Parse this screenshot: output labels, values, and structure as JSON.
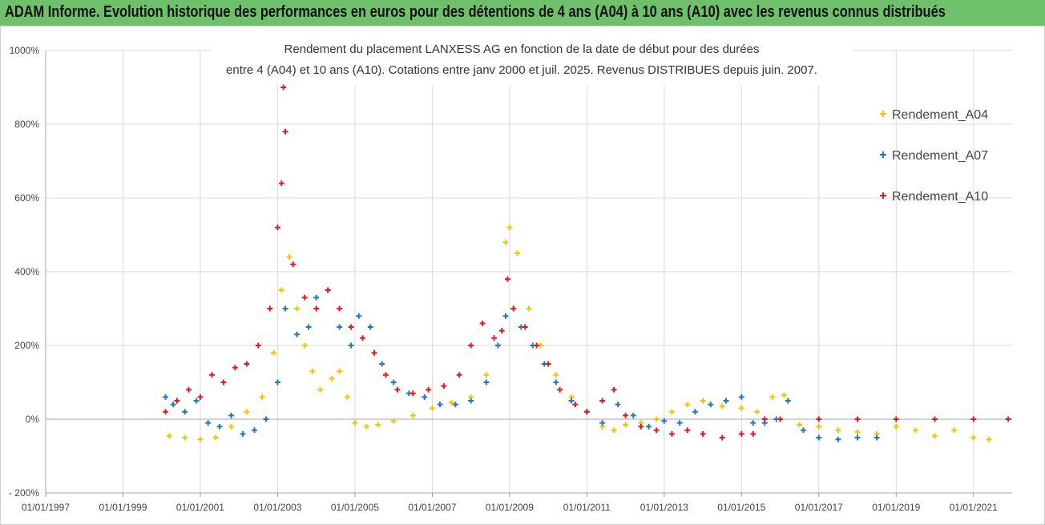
{
  "header": {
    "title": "ADAM Informe. Evolution historique des performances en euros pour des détentions de 4 ans (A04) à 10 ans (A10) avec les revenus connus distribués"
  },
  "chart_data": {
    "type": "scatter",
    "title_line1": "Rendement du placement LANXESS AG en fonction de la date de début pour des durées",
    "title_line2": "entre 4 (A04) et 10 ans (A10).  Cotations entre janv 2000 et juil. 2025. Revenus DISTRIBUES depuis juin. 2007.",
    "x_ticks": [
      "01/01/1997",
      "01/01/1999",
      "01/01/2001",
      "01/01/2003",
      "01/01/2005",
      "01/01/2007",
      "01/01/2009",
      "01/01/2011",
      "01/01/2013",
      "01/01/2015",
      "01/01/2017",
      "01/01/2019",
      "01/01/2021"
    ],
    "y_ticks": [
      "1000%",
      "800%",
      "600%",
      "400%",
      "200%",
      "0%",
      "- 200%"
    ],
    "xlim": [
      1997.0,
      2022.0
    ],
    "ylim": [
      -200,
      1000
    ],
    "grid": true,
    "legend_position": "right",
    "series": [
      {
        "name": "Rendement_A04",
        "color": "#f5c300",
        "x": [
          2000.2,
          2000.6,
          2001.0,
          2001.4,
          2001.8,
          2002.2,
          2002.6,
          2002.9,
          2003.1,
          2003.3,
          2003.5,
          2003.7,
          2003.9,
          2004.1,
          2004.4,
          2004.6,
          2004.8,
          2005.0,
          2005.3,
          2005.6,
          2006.0,
          2006.5,
          2007.0,
          2007.5,
          2008.0,
          2008.4,
          2008.7,
          2008.9,
          2009.0,
          2009.2,
          2009.5,
          2009.8,
          2010.2,
          2010.6,
          2011.0,
          2011.4,
          2011.7,
          2012.0,
          2012.4,
          2012.8,
          2013.2,
          2013.6,
          2014.0,
          2014.5,
          2015.0,
          2015.4,
          2015.8,
          2016.1,
          2016.5,
          2017.0,
          2017.5,
          2018.0,
          2018.5,
          2019.0,
          2019.5,
          2020.0,
          2020.5,
          2021.0,
          2021.4
        ],
        "y": [
          -45,
          -50,
          -55,
          -50,
          -20,
          20,
          60,
          180,
          350,
          440,
          300,
          200,
          130,
          80,
          110,
          130,
          60,
          -10,
          -20,
          -15,
          -5,
          10,
          30,
          45,
          60,
          120,
          200,
          480,
          520,
          450,
          300,
          200,
          120,
          60,
          20,
          -20,
          -30,
          -15,
          -10,
          0,
          20,
          40,
          50,
          35,
          30,
          20,
          60,
          65,
          -15,
          -20,
          -30,
          -35,
          -40,
          -20,
          -30,
          -45,
          -30,
          -50,
          -55
        ]
      },
      {
        "name": "Rendement_A07",
        "color": "#1f77c0",
        "x": [
          2000.1,
          2000.3,
          2000.6,
          2000.9,
          2001.2,
          2001.5,
          2001.8,
          2002.1,
          2002.4,
          2002.7,
          2003.0,
          2003.2,
          2003.5,
          2003.8,
          2004.0,
          2004.3,
          2004.6,
          2004.9,
          2005.1,
          2005.4,
          2005.7,
          2006.0,
          2006.4,
          2006.8,
          2007.2,
          2007.6,
          2008.0,
          2008.4,
          2008.7,
          2008.9,
          2009.1,
          2009.3,
          2009.6,
          2009.9,
          2010.2,
          2010.6,
          2011.0,
          2011.4,
          2011.8,
          2012.2,
          2012.6,
          2013.0,
          2013.4,
          2013.8,
          2014.2,
          2014.6,
          2015.0,
          2015.3,
          2015.6,
          2015.9,
          2016.2,
          2016.6,
          2017.0,
          2017.5,
          2018.0,
          2018.5
        ],
        "y": [
          60,
          40,
          20,
          50,
          -10,
          -20,
          10,
          -40,
          -30,
          0,
          100,
          300,
          230,
          250,
          330,
          350,
          250,
          200,
          280,
          250,
          150,
          100,
          70,
          60,
          40,
          40,
          50,
          100,
          200,
          280,
          300,
          250,
          200,
          150,
          100,
          50,
          20,
          -10,
          40,
          10,
          -20,
          -5,
          -10,
          20,
          40,
          50,
          60,
          -10,
          -10,
          0,
          50,
          -30,
          -50,
          -55,
          -50,
          -50
        ]
      },
      {
        "name": "Rendement_A10",
        "color": "#e5181e",
        "x": [
          2000.1,
          2000.4,
          2000.7,
          2001.0,
          2001.3,
          2001.6,
          2001.9,
          2002.2,
          2002.5,
          2002.8,
          2003.0,
          2003.1,
          2003.15,
          2003.2,
          2003.4,
          2003.7,
          2004.0,
          2004.3,
          2004.6,
          2004.9,
          2005.2,
          2005.5,
          2005.8,
          2006.1,
          2006.5,
          2006.9,
          2007.3,
          2007.7,
          2008.0,
          2008.3,
          2008.6,
          2008.8,
          2008.95,
          2009.1,
          2009.4,
          2009.7,
          2010.0,
          2010.3,
          2010.7,
          2011.0,
          2011.4,
          2011.7,
          2012.0,
          2012.4,
          2012.8,
          2013.2,
          2013.6,
          2014.0,
          2014.5,
          2015.0,
          2015.3,
          2015.6,
          2016.0,
          2017.0,
          2018.0,
          2019.0,
          2020.0,
          2021.0,
          2021.9
        ],
        "y": [
          20,
          50,
          80,
          60,
          120,
          100,
          140,
          150,
          200,
          300,
          520,
          640,
          900,
          780,
          420,
          330,
          300,
          350,
          300,
          250,
          220,
          180,
          120,
          80,
          70,
          80,
          90,
          120,
          200,
          260,
          220,
          240,
          380,
          300,
          250,
          200,
          150,
          80,
          40,
          20,
          50,
          80,
          10,
          -20,
          -30,
          -40,
          -30,
          -40,
          -50,
          -40,
          -40,
          0,
          0,
          0,
          0,
          0,
          0,
          0,
          0
        ]
      }
    ]
  }
}
